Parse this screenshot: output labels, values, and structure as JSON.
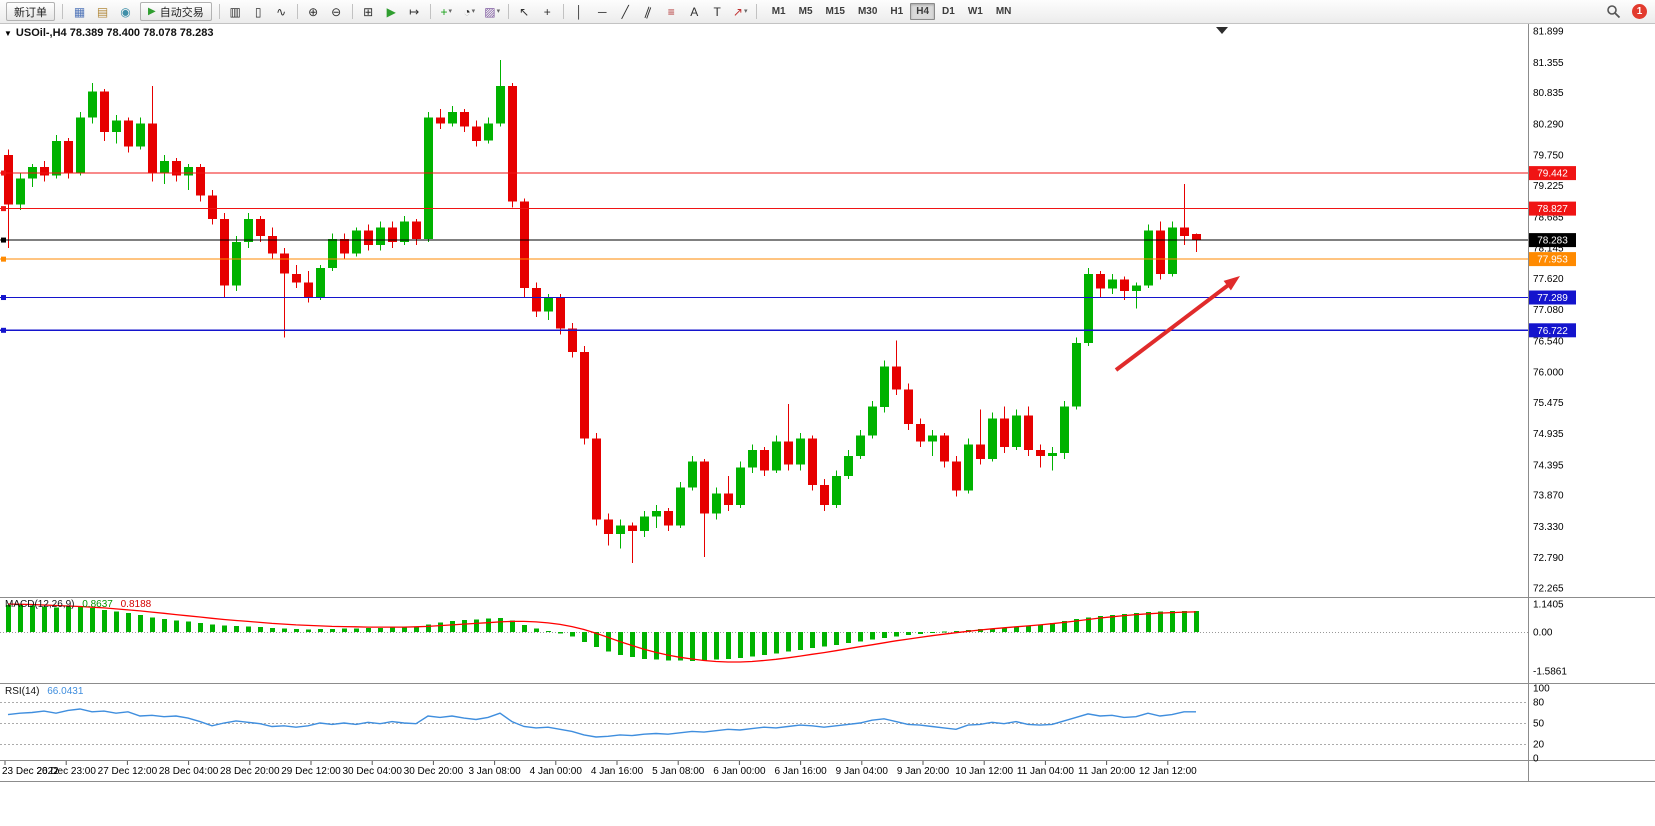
{
  "toolbar": {
    "new_order_label": "新订单",
    "autotrading_label": "自动交易",
    "autotrading_icon_glyph": "▶",
    "caret_glyph": "▾",
    "notification_count": "1",
    "window_icons": [
      {
        "name": "chart-window-icon",
        "glyph": "▦",
        "color": "#4f74b8"
      },
      {
        "name": "profiles-icon",
        "glyph": "▤",
        "color": "#b2893c"
      },
      {
        "name": "terminal-icon",
        "glyph": "◉",
        "color": "#3f8fa8"
      }
    ],
    "tools": [
      {
        "type": "sep"
      },
      {
        "type": "icon",
        "name": "bar-chart-icon",
        "glyph": "▥",
        "color": "#303030"
      },
      {
        "type": "icon",
        "name": "candlestick-chart-icon",
        "glyph": "▯",
        "color": "#303030"
      },
      {
        "type": "icon",
        "name": "line-chart-icon",
        "glyph": "∿",
        "color": "#303030"
      },
      {
        "type": "sep"
      },
      {
        "type": "icon",
        "name": "zoom-in-icon",
        "glyph": "⊕",
        "color": "#303030"
      },
      {
        "type": "icon",
        "name": "zoom-out-icon",
        "glyph": "⊖",
        "color": "#303030"
      },
      {
        "type": "sep"
      },
      {
        "type": "icon",
        "name": "tile-windows-icon",
        "glyph": "⊞",
        "color": "#303030"
      },
      {
        "type": "icon",
        "name": "auto-scroll-icon",
        "glyph": "▶",
        "color": "#2f9e2f"
      },
      {
        "type": "icon",
        "name": "chart-shift-icon",
        "glyph": "↦",
        "color": "#303030"
      },
      {
        "type": "sep"
      },
      {
        "type": "icon",
        "name": "indicators-icon",
        "glyph": "+",
        "color": "#18a018",
        "caret": true
      },
      {
        "type": "icon",
        "name": "periods-icon",
        "glyph": "◔",
        "color": "#303030",
        "caret": true
      },
      {
        "type": "icon",
        "name": "templates-icon",
        "glyph": "▨",
        "color": "#7e5aa0",
        "caret": true
      },
      {
        "type": "sep"
      },
      {
        "type": "icon",
        "name": "cursor-icon",
        "glyph": "↖",
        "color": "#303030"
      },
      {
        "type": "icon",
        "name": "crosshair-icon",
        "glyph": "+",
        "color": "#303030"
      },
      {
        "type": "sep"
      },
      {
        "type": "icon",
        "name": "vertical-line-icon",
        "glyph": "│",
        "color": "#303030"
      },
      {
        "type": "icon",
        "name": "horizontal-line-icon",
        "glyph": "─",
        "color": "#303030"
      },
      {
        "type": "icon",
        "name": "trendline-icon",
        "glyph": "╱",
        "color": "#303030"
      },
      {
        "type": "icon",
        "name": "equidistant-channel-icon",
        "glyph": "∥",
        "color": "#303030",
        "rot": 20
      },
      {
        "type": "icon",
        "name": "fibonacci-icon",
        "glyph": "≡",
        "color": "#b03030"
      },
      {
        "type": "icon",
        "name": "text-icon",
        "glyph": "A",
        "color": "#303030"
      },
      {
        "type": "icon",
        "name": "text-label-icon",
        "glyph": "T",
        "color": "#303030"
      },
      {
        "type": "icon",
        "name": "arrows-icon",
        "glyph": "↗",
        "color": "#c03030",
        "caret": true
      },
      {
        "type": "sep"
      }
    ],
    "timeframes": [
      {
        "label": "M1",
        "active": false
      },
      {
        "label": "M5",
        "active": false
      },
      {
        "label": "M15",
        "active": false
      },
      {
        "label": "M30",
        "active": false
      },
      {
        "label": "H1",
        "active": false
      },
      {
        "label": "H4",
        "active": true
      },
      {
        "label": "D1",
        "active": false
      },
      {
        "label": "W1",
        "active": false
      },
      {
        "label": "MN",
        "active": false
      }
    ]
  },
  "chart": {
    "one_click_glyph": "▼",
    "title": "USOil-,H4 78.389 78.400 78.078 78.283",
    "symbol": "USOil-",
    "period": "H4",
    "price_axis": [
      "81.899",
      "81.355",
      "80.835",
      "80.290",
      "79.750",
      "79.225",
      "78.685",
      "78.145",
      "77.620",
      "77.080",
      "76.540",
      "76.000",
      "75.475",
      "74.935",
      "74.395",
      "73.870",
      "73.330",
      "72.790",
      "72.265"
    ],
    "time_axis": [
      "23 Dec 2022",
      "26 Dec 23:00",
      "27 Dec 12:00",
      "28 Dec 04:00",
      "28 Dec 20:00",
      "29 Dec 12:00",
      "30 Dec 04:00",
      "30 Dec 20:00",
      "3 Jan 08:00",
      "4 Jan 00:00",
      "4 Jan 16:00",
      "5 Jan 08:00",
      "6 Jan 00:00",
      "6 Jan 16:00",
      "9 Jan 04:00",
      "9 Jan 20:00",
      "10 Jan 12:00",
      "11 Jan 04:00",
      "11 Jan 20:00",
      "12 Jan 12:00"
    ],
    "hlines": [
      {
        "price": 79.442,
        "label": "79.442",
        "color": "#f01414",
        "type": "resistance"
      },
      {
        "price": 78.827,
        "label": "78.827",
        "color": "#f01414",
        "type": "resistance"
      },
      {
        "price": 78.283,
        "label": "78.283",
        "color": "#000000",
        "type": "current-price"
      },
      {
        "price": 77.953,
        "label": "77.953",
        "color": "#ff8a00",
        "type": "support"
      },
      {
        "price": 77.289,
        "label": "77.289",
        "color": "#1414cd",
        "type": "support"
      },
      {
        "price": 76.722,
        "label": "76.722",
        "color": "#1414cd",
        "type": "support"
      }
    ],
    "colors": {
      "bull": "#00b200",
      "bear": "#e60000",
      "macd_hist": "#00b200",
      "macd_signal": "#ff0000",
      "rsi_line": "#3f8ede",
      "arrow": "#e02b2b"
    }
  },
  "chart_data": {
    "type": "candlestick",
    "symbol": "USOil-",
    "timeframe": "H4",
    "ohlc_current": {
      "open": "78.389",
      "high": "78.400",
      "low": "78.078",
      "close": "78.283"
    },
    "candles": [
      [
        79.75,
        79.85,
        78.15,
        78.9
      ],
      [
        78.9,
        79.45,
        78.8,
        79.35
      ],
      [
        79.35,
        79.6,
        79.2,
        79.55
      ],
      [
        79.55,
        79.65,
        79.3,
        79.4
      ],
      [
        79.4,
        80.1,
        79.35,
        80.0
      ],
      [
        80.0,
        80.05,
        79.35,
        79.45
      ],
      [
        79.45,
        80.5,
        79.4,
        80.4
      ],
      [
        80.4,
        81.0,
        80.3,
        80.85
      ],
      [
        80.85,
        80.9,
        80.0,
        80.15
      ],
      [
        80.15,
        80.45,
        79.95,
        80.35
      ],
      [
        80.35,
        80.4,
        79.8,
        79.9
      ],
      [
        79.9,
        80.4,
        79.85,
        80.3
      ],
      [
        80.3,
        80.95,
        79.3,
        79.45
      ],
      [
        79.45,
        79.75,
        79.25,
        79.65
      ],
      [
        79.65,
        79.7,
        79.3,
        79.4
      ],
      [
        79.4,
        79.6,
        79.15,
        79.55
      ],
      [
        79.55,
        79.6,
        78.95,
        79.05
      ],
      [
        79.05,
        79.15,
        78.55,
        78.65
      ],
      [
        78.65,
        78.75,
        77.3,
        77.5
      ],
      [
        77.5,
        78.35,
        77.4,
        78.25
      ],
      [
        78.25,
        78.75,
        78.15,
        78.65
      ],
      [
        78.65,
        78.7,
        78.25,
        78.35
      ],
      [
        78.35,
        78.5,
        77.95,
        78.05
      ],
      [
        78.05,
        78.15,
        76.6,
        77.7
      ],
      [
        77.7,
        77.85,
        77.45,
        77.55
      ],
      [
        77.55,
        77.75,
        77.2,
        77.3
      ],
      [
        77.3,
        77.85,
        77.25,
        77.8
      ],
      [
        77.8,
        78.4,
        77.75,
        78.3
      ],
      [
        78.3,
        78.4,
        77.95,
        78.05
      ],
      [
        78.05,
        78.5,
        78.0,
        78.45
      ],
      [
        78.45,
        78.55,
        78.1,
        78.2
      ],
      [
        78.2,
        78.6,
        78.1,
        78.5
      ],
      [
        78.5,
        78.6,
        78.15,
        78.25
      ],
      [
        78.25,
        78.7,
        78.2,
        78.6
      ],
      [
        78.6,
        78.65,
        78.2,
        78.3
      ],
      [
        78.3,
        80.5,
        78.25,
        80.4
      ],
      [
        80.4,
        80.55,
        80.2,
        80.3
      ],
      [
        80.3,
        80.6,
        80.25,
        80.5
      ],
      [
        80.5,
        80.55,
        80.15,
        80.25
      ],
      [
        80.25,
        80.35,
        79.9,
        80.0
      ],
      [
        80.0,
        80.4,
        79.95,
        80.3
      ],
      [
        80.3,
        81.4,
        80.25,
        80.95
      ],
      [
        80.95,
        81.0,
        78.85,
        78.95
      ],
      [
        78.95,
        79.0,
        77.3,
        77.45
      ],
      [
        77.45,
        77.55,
        76.95,
        77.05
      ],
      [
        77.05,
        77.35,
        76.9,
        77.3
      ],
      [
        77.3,
        77.35,
        76.65,
        76.75
      ],
      [
        76.75,
        76.85,
        76.25,
        76.35
      ],
      [
        76.35,
        76.45,
        74.75,
        74.85
      ],
      [
        74.85,
        74.95,
        73.35,
        73.45
      ],
      [
        73.45,
        73.55,
        73.0,
        73.2
      ],
      [
        73.2,
        73.45,
        72.95,
        73.35
      ],
      [
        73.35,
        73.4,
        72.7,
        73.25
      ],
      [
        73.25,
        73.6,
        73.15,
        73.5
      ],
      [
        73.5,
        73.7,
        73.3,
        73.6
      ],
      [
        73.6,
        73.65,
        73.25,
        73.35
      ],
      [
        73.35,
        74.1,
        73.3,
        74.0
      ],
      [
        74.0,
        74.55,
        73.95,
        74.45
      ],
      [
        74.45,
        74.5,
        72.8,
        73.55
      ],
      [
        73.55,
        74.0,
        73.45,
        73.9
      ],
      [
        73.9,
        74.2,
        73.6,
        73.7
      ],
      [
        73.7,
        74.45,
        73.65,
        74.35
      ],
      [
        74.35,
        74.75,
        74.25,
        74.65
      ],
      [
        74.65,
        74.7,
        74.2,
        74.3
      ],
      [
        74.3,
        74.9,
        74.25,
        74.8
      ],
      [
        74.8,
        75.45,
        74.3,
        74.4
      ],
      [
        74.4,
        74.95,
        74.3,
        74.85
      ],
      [
        74.85,
        74.9,
        73.95,
        74.05
      ],
      [
        74.05,
        74.15,
        73.6,
        73.7
      ],
      [
        73.7,
        74.3,
        73.65,
        74.2
      ],
      [
        74.2,
        74.65,
        74.15,
        74.55
      ],
      [
        74.55,
        75.0,
        74.5,
        74.9
      ],
      [
        74.9,
        75.5,
        74.85,
        75.4
      ],
      [
        75.4,
        76.2,
        75.3,
        76.1
      ],
      [
        76.1,
        76.55,
        75.6,
        75.7
      ],
      [
        75.7,
        75.8,
        75.0,
        75.1
      ],
      [
        75.1,
        75.2,
        74.7,
        74.8
      ],
      [
        74.8,
        75.0,
        74.55,
        74.9
      ],
      [
        74.9,
        74.95,
        74.35,
        74.45
      ],
      [
        74.45,
        74.55,
        73.85,
        73.95
      ],
      [
        73.95,
        74.85,
        73.9,
        74.75
      ],
      [
        74.75,
        75.35,
        74.4,
        74.5
      ],
      [
        74.5,
        75.3,
        74.45,
        75.2
      ],
      [
        75.2,
        75.4,
        74.6,
        74.7
      ],
      [
        74.7,
        75.35,
        74.65,
        75.25
      ],
      [
        75.25,
        75.4,
        74.55,
        74.65
      ],
      [
        74.65,
        74.75,
        74.35,
        74.55
      ],
      [
        74.55,
        74.7,
        74.3,
        74.6
      ],
      [
        74.6,
        75.5,
        74.5,
        75.4
      ],
      [
        75.4,
        76.6,
        75.35,
        76.5
      ],
      [
        76.5,
        77.8,
        76.45,
        77.7
      ],
      [
        77.7,
        77.75,
        77.3,
        77.45
      ],
      [
        77.45,
        77.7,
        77.35,
        77.6
      ],
      [
        77.6,
        77.65,
        77.25,
        77.4
      ],
      [
        77.4,
        77.55,
        77.1,
        77.5
      ],
      [
        77.5,
        78.55,
        77.45,
        78.45
      ],
      [
        78.45,
        78.6,
        77.6,
        77.7
      ],
      [
        77.7,
        78.6,
        77.65,
        78.5
      ],
      [
        78.5,
        79.25,
        78.2,
        78.35
      ],
      [
        78.389,
        78.4,
        78.078,
        78.283
      ]
    ],
    "indicators": {
      "macd": {
        "label": "MACD(12,26,9)",
        "value_main": "0.8637",
        "value_signal": "0.8188",
        "scale_labels": [
          "1.1405",
          "0.00",
          "-1.5861"
        ],
        "histogram": [
          1.1,
          1.12,
          1.08,
          1.04,
          1.0,
          1.03,
          1.06,
          0.98,
          0.9,
          0.83,
          0.78,
          0.7,
          0.6,
          0.52,
          0.47,
          0.43,
          0.37,
          0.3,
          0.26,
          0.24,
          0.22,
          0.2,
          0.17,
          0.14,
          0.12,
          0.11,
          0.12,
          0.13,
          0.14,
          0.15,
          0.16,
          0.17,
          0.18,
          0.19,
          0.2,
          0.3,
          0.38,
          0.44,
          0.48,
          0.5,
          0.54,
          0.58,
          0.46,
          0.28,
          0.14,
          0.04,
          -0.06,
          -0.18,
          -0.4,
          -0.62,
          -0.8,
          -0.93,
          -1.02,
          -1.09,
          -1.13,
          -1.16,
          -1.17,
          -1.18,
          -1.16,
          -1.13,
          -1.09,
          -1.05,
          -1.0,
          -0.94,
          -0.87,
          -0.8,
          -0.73,
          -0.66,
          -0.59,
          -0.52,
          -0.45,
          -0.38,
          -0.31,
          -0.25,
          -0.19,
          -0.13,
          -0.08,
          -0.03,
          0.02,
          0.05,
          0.08,
          0.12,
          0.15,
          0.18,
          0.21,
          0.25,
          0.3,
          0.36,
          0.44,
          0.52,
          0.6,
          0.66,
          0.7,
          0.74,
          0.78,
          0.81,
          0.83,
          0.85,
          0.86,
          0.8637
        ],
        "signal": [
          1.14,
          1.13,
          1.12,
          1.1,
          1.08,
          1.06,
          1.04,
          1.01,
          0.98,
          0.94,
          0.9,
          0.86,
          0.81,
          0.76,
          0.71,
          0.66,
          0.61,
          0.56,
          0.51,
          0.47,
          0.43,
          0.39,
          0.35,
          0.32,
          0.29,
          0.27,
          0.25,
          0.23,
          0.22,
          0.21,
          0.2,
          0.2,
          0.2,
          0.2,
          0.21,
          0.23,
          0.26,
          0.29,
          0.32,
          0.35,
          0.38,
          0.41,
          0.43,
          0.43,
          0.41,
          0.37,
          0.31,
          0.22,
          0.1,
          -0.05,
          -0.22,
          -0.39,
          -0.55,
          -0.7,
          -0.83,
          -0.94,
          -1.03,
          -1.1,
          -1.16,
          -1.2,
          -1.22,
          -1.22,
          -1.2,
          -1.16,
          -1.11,
          -1.05,
          -0.98,
          -0.91,
          -0.84,
          -0.76,
          -0.68,
          -0.6,
          -0.52,
          -0.44,
          -0.36,
          -0.29,
          -0.22,
          -0.15,
          -0.09,
          -0.03,
          0.03,
          0.08,
          0.13,
          0.17,
          0.21,
          0.25,
          0.29,
          0.34,
          0.39,
          0.45,
          0.51,
          0.57,
          0.62,
          0.67,
          0.71,
          0.74,
          0.77,
          0.79,
          0.81,
          0.8188
        ]
      },
      "rsi": {
        "label": "RSI(14)",
        "value": "66.0431",
        "levels": [
          "100",
          "80",
          "50",
          "20",
          "0"
        ],
        "series": [
          62,
          64,
          65,
          67,
          64,
          68,
          70,
          66,
          67,
          64,
          66,
          60,
          61,
          59,
          60,
          57,
          52,
          46,
          50,
          53,
          51,
          49,
          45,
          46,
          44,
          46,
          50,
          48,
          50,
          48,
          51,
          49,
          52,
          50,
          49,
          60,
          58,
          60,
          57,
          55,
          58,
          64,
          52,
          45,
          43,
          44,
          41,
          38,
          33,
          30,
          31,
          33,
          32,
          34,
          35,
          34,
          36,
          38,
          37,
          39,
          41,
          40,
          42,
          44,
          43,
          45,
          47,
          46,
          44,
          46,
          48,
          50,
          54,
          56,
          52,
          48,
          47,
          45,
          43,
          41,
          47,
          48,
          51,
          49,
          52,
          48,
          47,
          48,
          53,
          58,
          63,
          60,
          61,
          58,
          59,
          64,
          60,
          62,
          66,
          66.04
        ]
      }
    },
    "annotations": [
      {
        "type": "arrow",
        "direction": "up-right",
        "color": "#e02b2b",
        "meaning": "bullish-projection"
      }
    ]
  }
}
